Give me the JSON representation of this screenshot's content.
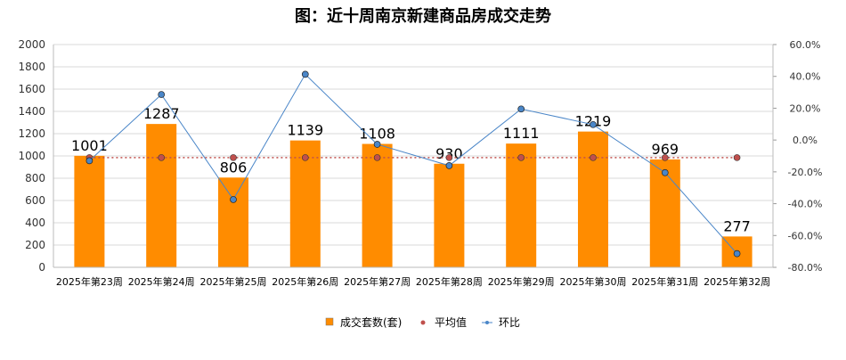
{
  "chart_data": {
    "type": "bar",
    "title": "图：近十周南京新建商品房成交走势",
    "categories": [
      "2025年第23周",
      "2025年第24周",
      "2025年第25周",
      "2025年第26周",
      "2025年第27周",
      "2025年第28周",
      "2025年第29周",
      "2025年第30周",
      "2025年第31周",
      "2025年第32周"
    ],
    "series": [
      {
        "name": "成交套数(套)",
        "type": "bar",
        "axis": "left",
        "color": "#FF8C00",
        "values": [
          1001,
          1287,
          806,
          1139,
          1108,
          930,
          1111,
          1219,
          969,
          277
        ]
      },
      {
        "name": "平均值",
        "type": "line",
        "axis": "left",
        "color": "#C0504D",
        "values": [
          985,
          985,
          985,
          985,
          985,
          985,
          985,
          985,
          985,
          985
        ]
      },
      {
        "name": "环比",
        "type": "line",
        "axis": "right",
        "color": "#4A86C8",
        "values": [
          -13.0,
          28.6,
          -37.4,
          41.3,
          -2.7,
          -16.1,
          19.5,
          9.7,
          -20.5,
          -71.4
        ]
      }
    ],
    "ylim": [
      0,
      2000
    ],
    "yticks": [
      "0",
      "200",
      "400",
      "600",
      "800",
      "1000",
      "1200",
      "1400",
      "1600",
      "1800",
      "2000"
    ],
    "y2lim": [
      -80,
      60
    ],
    "y2ticks": [
      "-80.0%",
      "-60.0%",
      "-40.0%",
      "-20.0%",
      "0.0%",
      "20.0%",
      "40.0%",
      "60.0%"
    ],
    "legend_position": "bottom",
    "grid": true
  }
}
